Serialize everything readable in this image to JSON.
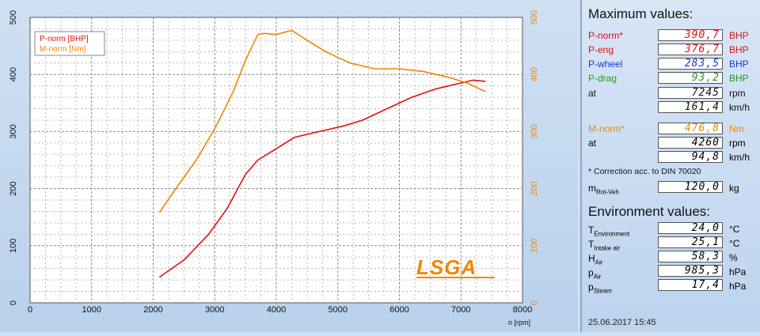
{
  "colors": {
    "p_norm": "#dd1111",
    "m_norm": "#ee8800",
    "p_eng": "#dd1111",
    "p_wheel": "#2233cc",
    "p_drag": "#229922",
    "black": "#111111",
    "grid": "#999999",
    "brand": "#ee8800"
  },
  "logo": "LSGA",
  "chart_data": {
    "type": "line",
    "x_unit_label": "n [rpm]",
    "xlim": [
      0,
      8000
    ],
    "ylim_left": [
      0,
      500
    ],
    "ylim_right": [
      0,
      500
    ],
    "x_ticks": [
      0,
      1000,
      2000,
      3000,
      4000,
      5000,
      6000,
      7000,
      8000
    ],
    "y_ticks": [
      0,
      100,
      200,
      300,
      400,
      500
    ],
    "grid": true,
    "legend_position": "top-left",
    "series": [
      {
        "name": "P-norm [BHP]",
        "axis": "left",
        "color": "#dd1111",
        "x": [
          2100,
          2500,
          2900,
          3200,
          3500,
          3700,
          3850,
          4000,
          4300,
          4700,
          5100,
          5400,
          5800,
          6200,
          6600,
          7000,
          7200,
          7400
        ],
        "y": [
          45,
          75,
          120,
          165,
          225,
          250,
          260,
          270,
          290,
          300,
          310,
          320,
          340,
          360,
          375,
          385,
          390,
          388
        ]
      },
      {
        "name": "M-norm [Nm]",
        "axis": "right",
        "color": "#ee8800",
        "x": [
          2100,
          2400,
          2700,
          3000,
          3300,
          3500,
          3700,
          3800,
          4000,
          4200,
          4260,
          4500,
          4800,
          5200,
          5600,
          6000,
          6400,
          6800,
          7100,
          7400
        ],
        "y": [
          158,
          205,
          250,
          305,
          370,
          425,
          470,
          472,
          470,
          476,
          476.8,
          460,
          440,
          420,
          410,
          410,
          405,
          395,
          385,
          370
        ]
      }
    ]
  },
  "panel": {
    "max_title": "Maximum values:",
    "rows": [
      {
        "label": "P-norm*",
        "value": "390,7",
        "unit": "BHP"
      },
      {
        "label": "P-eng",
        "value": "376,7",
        "unit": "BHP"
      },
      {
        "label": "P-wheel",
        "value": "283,5",
        "unit": "BHP"
      },
      {
        "label": "P-drag",
        "value": "93,2",
        "unit": "BHP"
      },
      {
        "label": "at",
        "value": "7245",
        "unit": "rpm"
      },
      {
        "label": "",
        "value": "161,4",
        "unit": "km/h"
      },
      {
        "label": "M-norm*",
        "value": "476,8",
        "unit": "Nm"
      },
      {
        "label": "at",
        "value": "4260",
        "unit": "rpm"
      },
      {
        "label": "",
        "value": "94,8",
        "unit": "km/h"
      }
    ],
    "correction_note": "* Correction acc. to DIN 70020",
    "mass": {
      "label_main": "m",
      "label_sub": "Rot-Veh",
      "value": "120,0",
      "unit": "kg"
    },
    "env_title": "Environment values:",
    "env_rows": [
      {
        "main": "T",
        "sub": "Environment",
        "value": "24,0",
        "unit": "°C"
      },
      {
        "main": "T",
        "sub": "Intake air",
        "value": "25,1",
        "unit": "°C"
      },
      {
        "main": "H",
        "sub": "Air",
        "value": "58,3",
        "unit": "%"
      },
      {
        "main": "p",
        "sub": "Air",
        "value": "985,3",
        "unit": "hPa"
      },
      {
        "main": "p",
        "sub": "Steam",
        "value": "17,4",
        "unit": "hPa"
      }
    ],
    "datetime": "25.06.2017   15:45"
  }
}
